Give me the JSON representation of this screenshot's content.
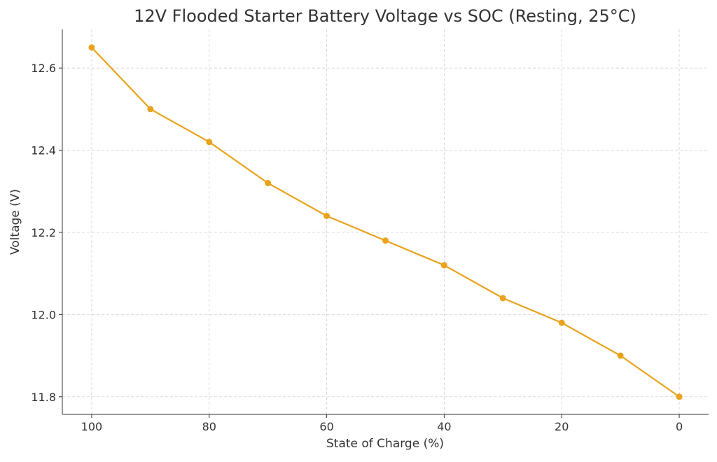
{
  "chart_data": {
    "type": "line",
    "title": "12V Flooded Starter Battery Voltage vs SOC (Resting, 25°C)",
    "xlabel": "State of Charge (%)",
    "ylabel": "Voltage (V)",
    "x": [
      100,
      90,
      80,
      70,
      60,
      50,
      40,
      30,
      20,
      10,
      0
    ],
    "series": [
      {
        "values": [
          12.65,
          12.5,
          12.42,
          12.32,
          12.24,
          12.18,
          12.12,
          12.04,
          11.98,
          11.9,
          11.8
        ]
      }
    ],
    "xlim": [
      105,
      -5
    ],
    "ylim": [
      11.757,
      12.694
    ],
    "x_inverted": true,
    "xticks": [
      100,
      80,
      60,
      40,
      20,
      0
    ],
    "xtick_labels": [
      "100",
      "80",
      "60",
      "40",
      "20",
      "0"
    ],
    "yticks": [
      11.8,
      12.0,
      12.2,
      12.4,
      12.6
    ],
    "ytick_labels": [
      "11.8",
      "12.0",
      "12.2",
      "12.4",
      "12.6"
    ],
    "grid": true,
    "marker": "circle",
    "color": "#E9A21B"
  }
}
